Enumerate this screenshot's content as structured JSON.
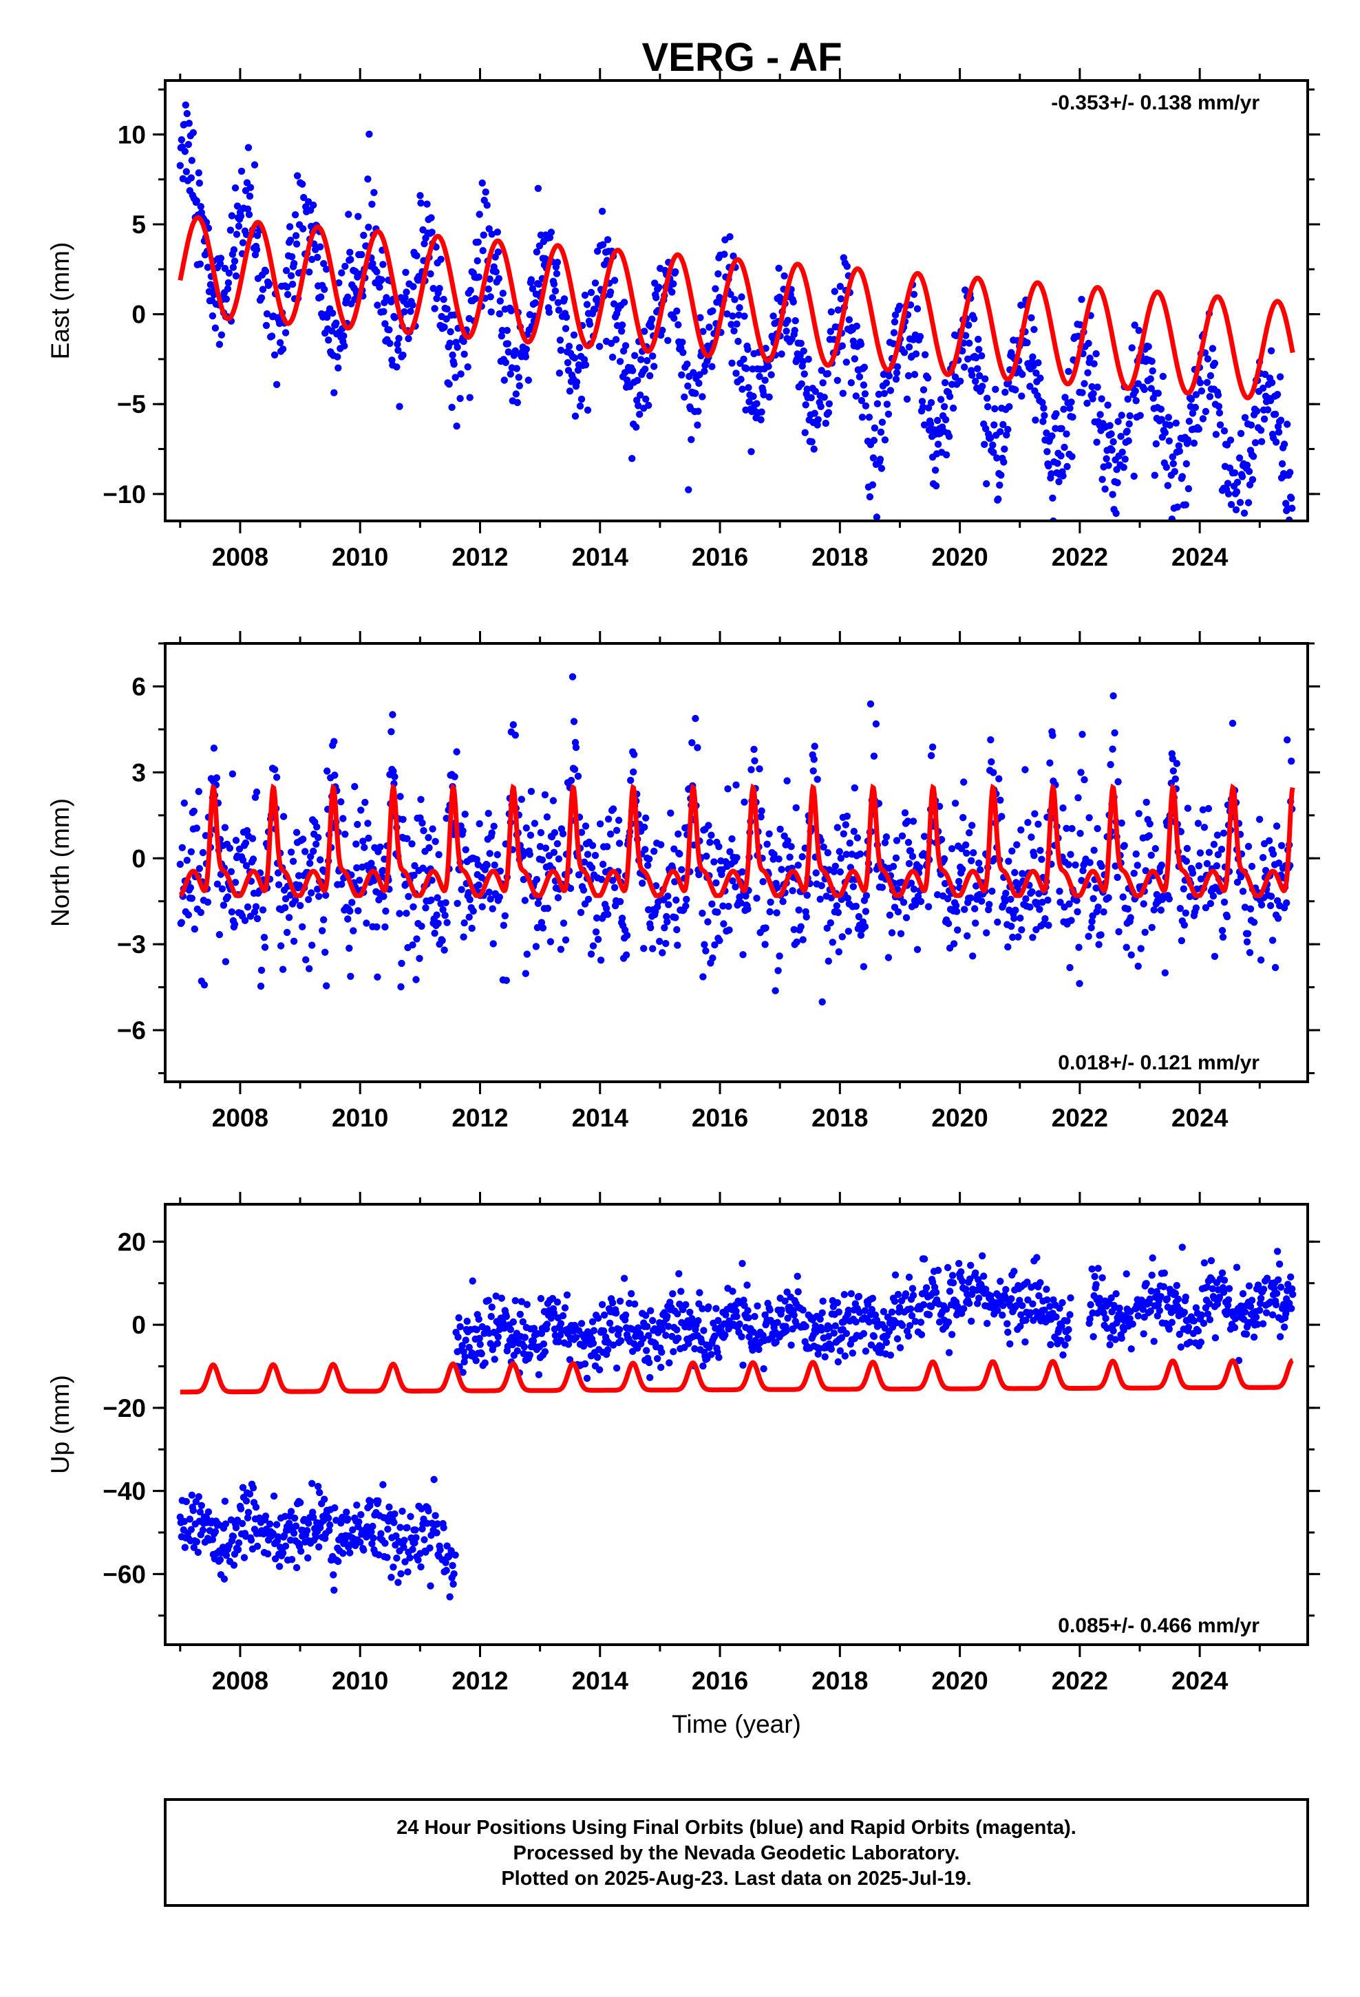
{
  "title": "VERG - AF",
  "x_axis_label": "Time (year)",
  "footer": {
    "line1": "24 Hour Positions Using Final Orbits (blue) and Rapid Orbits (magenta).",
    "line2": "Processed by the Nevada Geodetic Laboratory.",
    "line3": "Plotted on 2025-Aug-23. Last data on 2025-Jul-19."
  },
  "colors": {
    "data": "#0000ff",
    "model": "#ff0000",
    "frame": "#000000"
  },
  "chart_data": [
    {
      "type": "scatter",
      "component": "east",
      "ylabel": "East (mm)",
      "rate_label": "-0.353+/- 0.138 mm/yr",
      "rate_position": "top-right",
      "xlim": [
        2006.75,
        2025.8
      ],
      "ylim": [
        -11.5,
        13.0
      ],
      "x_ticks": [
        2008,
        2010,
        2012,
        2014,
        2016,
        2018,
        2020,
        2022,
        2024
      ],
      "y_ticks": [
        10,
        5,
        0,
        -5,
        -10
      ],
      "y_tick_labels": [
        "10",
        "5",
        "0",
        "−5",
        "−10"
      ],
      "grid": false,
      "series": [
        {
          "kind": "points",
          "color": "#0000ff",
          "data_range": [
            2007.0,
            2025.55
          ],
          "trend_mm_per_yr": -0.353,
          "annual_amplitude_mm": 3.0,
          "scatter_sd_mm": 1.5,
          "offset_mm": 3.3
        },
        {
          "kind": "model",
          "color": "#ff0000",
          "x_range": [
            2007.0,
            2025.55
          ],
          "y_start": 2.7,
          "y_end": -2.1,
          "annual_amplitude_mm": 2.5
        }
      ]
    },
    {
      "type": "scatter",
      "component": "north",
      "ylabel": "North (mm)",
      "rate_label": "0.018+/- 0.121 mm/yr",
      "rate_position": "bottom-right",
      "xlim": [
        2006.75,
        2025.8
      ],
      "ylim": [
        -7.8,
        7.5
      ],
      "x_ticks": [
        2008,
        2010,
        2012,
        2014,
        2016,
        2018,
        2020,
        2022,
        2024
      ],
      "y_ticks": [
        6,
        3,
        0,
        -3,
        -6
      ],
      "y_tick_labels": [
        "6",
        "3",
        "0",
        "−3",
        "−6"
      ],
      "grid": false,
      "series": [
        {
          "kind": "points",
          "color": "#0000ff",
          "data_range": [
            2007.0,
            2025.55
          ],
          "trend_mm_per_yr": 0.018,
          "annual_amplitude_mm": 1.6,
          "scatter_sd_mm": 1.3,
          "offset_mm": 0.0
        },
        {
          "kind": "model",
          "color": "#ff0000",
          "x_range": [
            2007.0,
            2025.55
          ],
          "y_min": -1.3,
          "y_max": 2.8,
          "peak_phase_year_fraction": 0.55
        }
      ]
    },
    {
      "type": "scatter",
      "component": "up",
      "ylabel": "Up (mm)",
      "rate_label": "0.085+/- 0.466 mm/yr",
      "rate_position": "bottom-right",
      "xlim": [
        2006.75,
        2025.8
      ],
      "ylim": [
        -77,
        29
      ],
      "x_ticks": [
        2008,
        2010,
        2012,
        2014,
        2016,
        2018,
        2020,
        2022,
        2024
      ],
      "y_ticks": [
        20,
        0,
        -20,
        -40,
        -60
      ],
      "y_tick_labels": [
        "20",
        "0",
        "−20",
        "−40",
        "−60"
      ],
      "grid": false,
      "series": [
        {
          "kind": "points",
          "color": "#0000ff",
          "segment": [
            2007.0,
            2011.6
          ],
          "level_mm": -50,
          "scatter_sd_mm": 4.2
        },
        {
          "kind": "points",
          "color": "#0000ff",
          "segment": [
            2011.6,
            2025.55
          ],
          "level_start_mm": -3,
          "level_end_mm": 5,
          "scatter_sd_mm": 4.0,
          "gap": [
            2021.85,
            2022.15
          ]
        },
        {
          "kind": "model",
          "color": "#ff0000",
          "x_range": [
            2007.0,
            2025.55
          ],
          "y_min": -16.5,
          "y_max": -9.5,
          "annual_amplitude_mm": 3.2
        }
      ]
    }
  ]
}
